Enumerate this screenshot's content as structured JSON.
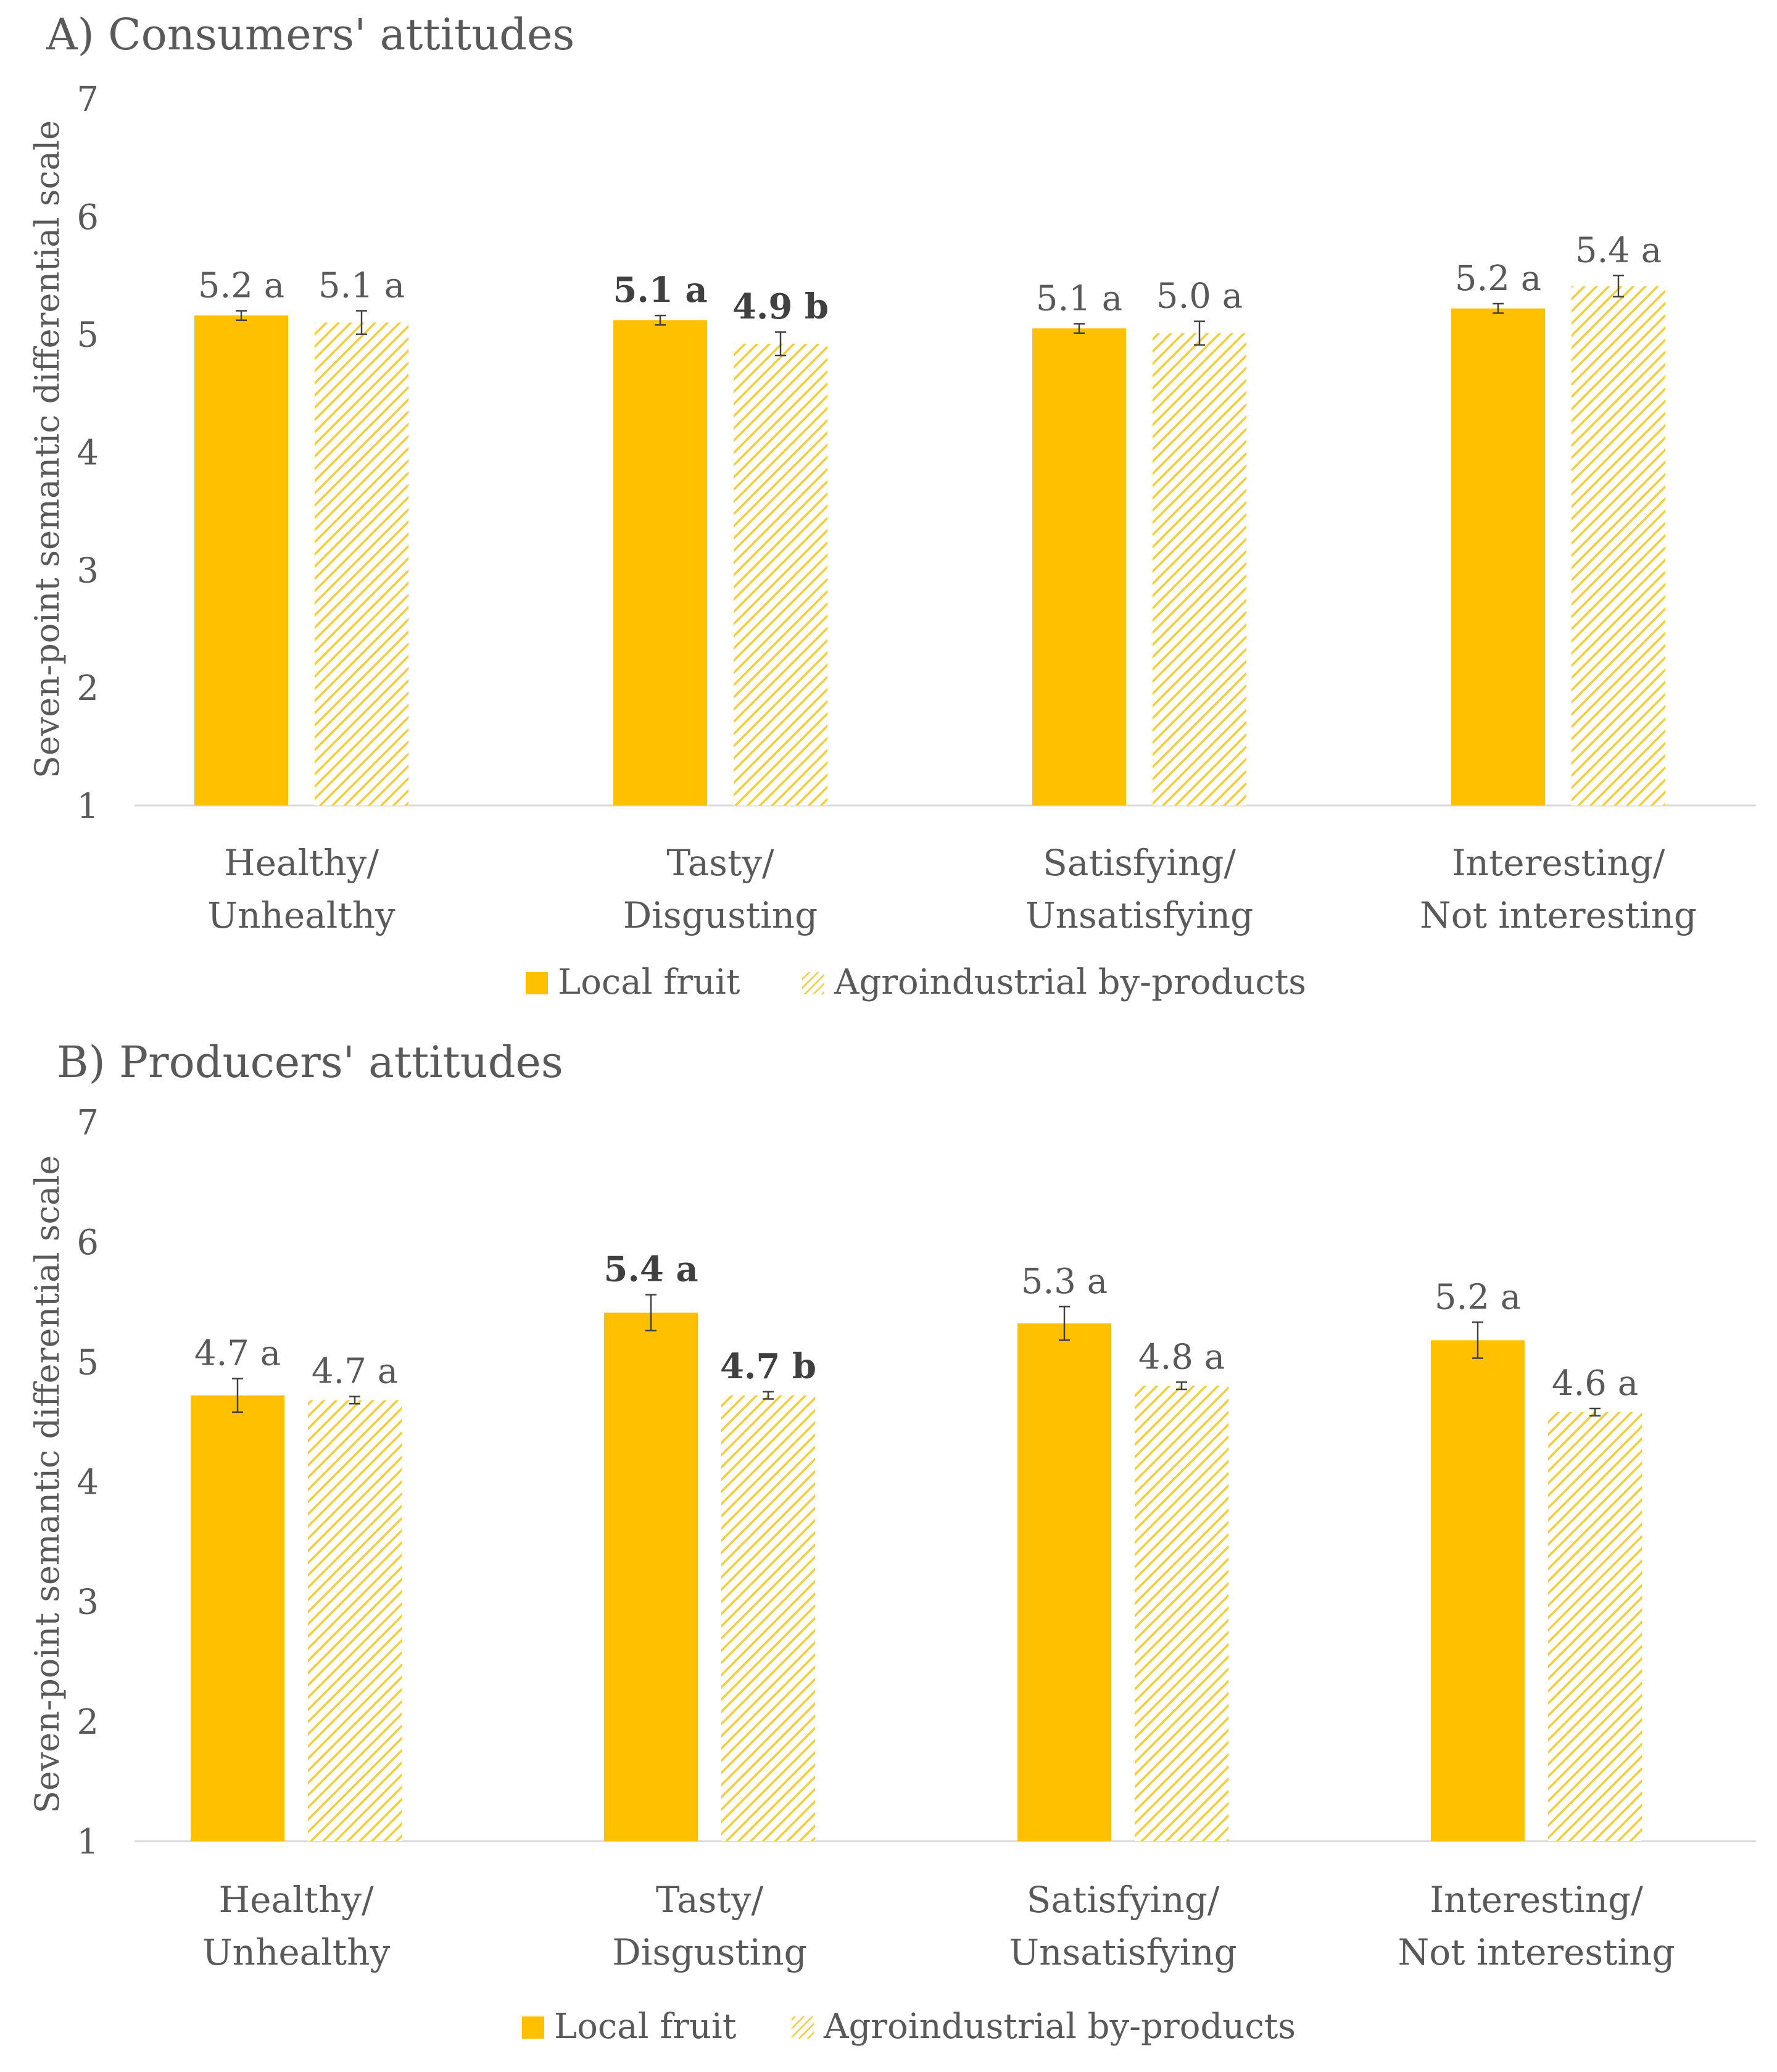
{
  "chart_data": [
    {
      "type": "bar",
      "title": "A) Consumers' attitudes",
      "ylabel": "Seven-point  semantic differential scale",
      "xlabel": "",
      "ylim": [
        1,
        7
      ],
      "yticks": [
        "1",
        "2",
        "3",
        "4",
        "5",
        "6",
        "7"
      ],
      "categories": [
        [
          "Healthy/",
          "Unhealthy"
        ],
        [
          "Tasty/",
          "Disgusting"
        ],
        [
          "Satisfying/",
          "Unsatisfying"
        ],
        [
          "Interesting/",
          "Not interesting"
        ]
      ],
      "series": [
        {
          "name": "Local fruit",
          "values": [
            5.16,
            5.12,
            5.05,
            5.22
          ],
          "errors": [
            0.04,
            0.04,
            0.04,
            0.04
          ],
          "labels": [
            "5.2 a",
            "5.1 a",
            "5.1 a",
            "5.2 a"
          ],
          "bold": [
            false,
            true,
            false,
            false
          ]
        },
        {
          "name": "Agroindustrial by-products",
          "values": [
            5.1,
            4.92,
            5.01,
            5.41
          ],
          "errors": [
            0.1,
            0.1,
            0.1,
            0.09
          ],
          "labels": [
            "5.1 a",
            "4.9 b",
            "5.0 a",
            "5.4 a"
          ],
          "bold": [
            false,
            true,
            false,
            false
          ]
        }
      ],
      "legend": [
        "Local fruit",
        "Agroindustrial by-products"
      ]
    },
    {
      "type": "bar",
      "title": "B) Producers' attitudes",
      "ylabel": "Seven-point  semantic differential scale",
      "xlabel": "",
      "ylim": [
        1,
        7
      ],
      "yticks": [
        "1",
        "2",
        "3",
        "4",
        "5",
        "6",
        "7"
      ],
      "categories": [
        [
          "Healthy/",
          "Unhealthy"
        ],
        [
          "Tasty/",
          "Disgusting"
        ],
        [
          "Satisfying/",
          "Unsatisfying"
        ],
        [
          "Interesting/",
          "Not interesting"
        ]
      ],
      "series": [
        {
          "name": "Local fruit",
          "values": [
            4.72,
            5.41,
            5.32,
            5.18
          ],
          "errors": [
            0.14,
            0.15,
            0.14,
            0.15
          ],
          "labels": [
            "4.7 a",
            "5.4 a",
            "5.3 a",
            "5.2 a"
          ],
          "bold": [
            false,
            true,
            false,
            false
          ]
        },
        {
          "name": "Agroindustrial by-products",
          "values": [
            4.68,
            4.72,
            4.8,
            4.58
          ],
          "errors": [
            0.03,
            0.03,
            0.03,
            0.03
          ],
          "labels": [
            "4.7 a",
            "4.7 b",
            "4.8 a",
            "4.6 a"
          ],
          "bold": [
            false,
            true,
            false,
            false
          ]
        }
      ],
      "legend": [
        "Local fruit",
        "Agroindustrial by-products"
      ]
    }
  ],
  "colors": {
    "local_fruit": "#FFC000",
    "hatch_line": "#F2CE3E",
    "text": "#595959",
    "axis": "#D9D9D9",
    "error_bar": "#404040"
  }
}
